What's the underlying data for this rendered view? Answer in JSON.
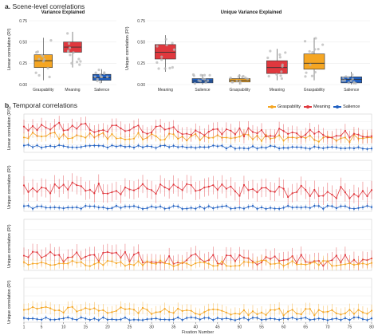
{
  "sections": {
    "a_label": "a.",
    "a_title": "Scene-level correlations",
    "b_label": "b.",
    "b_title": "Temporal correlations"
  },
  "colors": {
    "graspability": "#f5a623",
    "meaning": "#e0383e",
    "salience": "#1f5fc1",
    "jitter": "#b8b8b8",
    "grid": "#ececec"
  },
  "legend": {
    "items": [
      "Graspability",
      "Meaning",
      "Salience"
    ]
  },
  "chart_data": [
    {
      "type": "box",
      "title": "Variance Explained",
      "ylabel": "Linear correlation (R²)",
      "ylim": [
        0,
        0.75
      ],
      "yticks": [
        "0.00",
        "0.25",
        "0.50",
        "0.75"
      ],
      "categories": [
        "Graspability",
        "Meaning",
        "Salience"
      ],
      "boxes": [
        {
          "name": "Graspability",
          "min": 0.05,
          "q1": 0.2,
          "median": 0.28,
          "q3": 0.35,
          "max": 0.55
        },
        {
          "name": "Meaning",
          "min": 0.2,
          "q1": 0.38,
          "median": 0.44,
          "q3": 0.5,
          "max": 0.62
        },
        {
          "name": "Salience",
          "min": 0.02,
          "q1": 0.05,
          "median": 0.08,
          "q3": 0.12,
          "max": 0.18
        }
      ]
    },
    {
      "type": "box",
      "title": "Unique Variance Explained",
      "ylabel": "Unique correlation (R²)",
      "ylim": [
        0,
        0.75
      ],
      "yticks": [
        "0.00",
        "0.25",
        "0.50",
        "0.75"
      ],
      "categories": [
        "Meaning",
        "Salience",
        "Graspability",
        "Meaning",
        "Graspability",
        "Salience"
      ],
      "boxes": [
        {
          "name": "Meaning",
          "min": 0.15,
          "q1": 0.3,
          "median": 0.38,
          "q3": 0.47,
          "max": 0.58
        },
        {
          "name": "Salience",
          "min": 0.0,
          "q1": 0.02,
          "median": 0.04,
          "q3": 0.07,
          "max": 0.12
        },
        {
          "name": "Graspability",
          "min": 0.0,
          "q1": 0.03,
          "median": 0.05,
          "q3": 0.07,
          "max": 0.12
        },
        {
          "name": "Meaning",
          "min": 0.05,
          "q1": 0.13,
          "median": 0.2,
          "q3": 0.28,
          "max": 0.42
        },
        {
          "name": "Graspability",
          "min": 0.05,
          "q1": 0.18,
          "median": 0.25,
          "q3": 0.36,
          "max": 0.55
        },
        {
          "name": "Salience",
          "min": 0.0,
          "q1": 0.02,
          "median": 0.06,
          "q3": 0.09,
          "max": 0.15
        }
      ]
    },
    {
      "type": "line",
      "ylabel": "Linear correlation (R²)",
      "x": [
        1,
        80
      ],
      "series": [
        {
          "name": "Graspability",
          "level": 0.11,
          "amp": 0.025,
          "err": 0.035,
          "trend": -0.02
        },
        {
          "name": "Meaning",
          "level": 0.17,
          "amp": 0.03,
          "err": 0.045,
          "trend": -0.06
        },
        {
          "name": "Salience",
          "level": 0.04,
          "amp": 0.01,
          "err": 0.015,
          "trend": -0.01
        }
      ]
    },
    {
      "type": "line",
      "ylabel": "Unique correlation (R²)",
      "x": [
        1,
        80
      ],
      "series": [
        {
          "name": "Meaning",
          "level": 0.12,
          "amp": 0.03,
          "err": 0.045,
          "trend": -0.03
        },
        {
          "name": "Salience",
          "level": 0.02,
          "amp": 0.008,
          "err": 0.012,
          "trend": 0.0
        }
      ]
    },
    {
      "type": "line",
      "ylabel": "Unique correlation (R²)",
      "x": [
        1,
        80
      ],
      "series": [
        {
          "name": "Meaning",
          "level": 0.075,
          "amp": 0.03,
          "err": 0.04,
          "trend": -0.03
        },
        {
          "name": "Graspability",
          "level": 0.035,
          "amp": 0.015,
          "err": 0.025,
          "trend": 0.0
        }
      ]
    },
    {
      "type": "line",
      "ylabel": "Unique correlation (R²)",
      "xlabel": "Fixation Number",
      "x": [
        1,
        80
      ],
      "xticks": [
        "1",
        "5",
        "10",
        "15",
        "20",
        "25",
        "30",
        "35",
        "40",
        "45",
        "50",
        "55",
        "60",
        "65",
        "70",
        "75",
        "80"
      ],
      "series": [
        {
          "name": "Graspability",
          "level": 0.07,
          "amp": 0.02,
          "err": 0.035,
          "trend": -0.015
        },
        {
          "name": "Salience",
          "level": 0.02,
          "amp": 0.008,
          "err": 0.012,
          "trend": 0.0
        }
      ]
    }
  ]
}
